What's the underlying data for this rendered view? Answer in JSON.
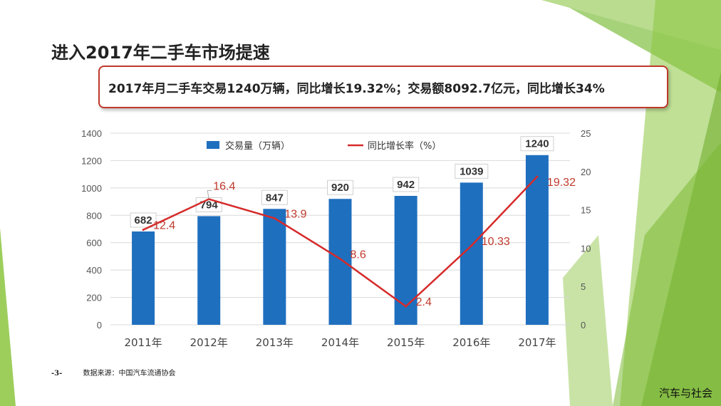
{
  "title": "进入2017年二手车市场提速",
  "callout": "2017年月二手车交易1240万辆，同比增长19.32%；交易额8092.7亿元，同比增长34%",
  "source": {
    "page": "-3-",
    "text": "数据来源：中国汽车流通协会"
  },
  "watermark": "汽车与社会",
  "colors": {
    "bar": "#1f6fbf",
    "line": "#d62a2a",
    "growth_label": "#c0392b",
    "accent_green": "#8cc63f"
  },
  "chart_data": {
    "type": "bar",
    "categories": [
      "2011年",
      "2012年",
      "2013年",
      "2014年",
      "2015年",
      "2016年",
      "2017年"
    ],
    "series": [
      {
        "name": "交易量（万辆）",
        "type": "bar",
        "axis": "left",
        "values": [
          682,
          794,
          847,
          920,
          942,
          1039,
          1240
        ]
      },
      {
        "name": "同比增长率（%）",
        "type": "line",
        "axis": "right",
        "values": [
          12.4,
          16.4,
          13.9,
          8.6,
          2.4,
          10.33,
          19.32
        ]
      }
    ],
    "left_ticks": [
      "0",
      "200",
      "400",
      "600",
      "800",
      "1000",
      "1200",
      "1400"
    ],
    "right_ticks": [
      "0",
      "5",
      "10",
      "15",
      "20",
      "25"
    ],
    "ylim_left": [
      0,
      1400
    ],
    "ylim_right": [
      0,
      25
    ],
    "grid": true,
    "legend_position": "top"
  }
}
